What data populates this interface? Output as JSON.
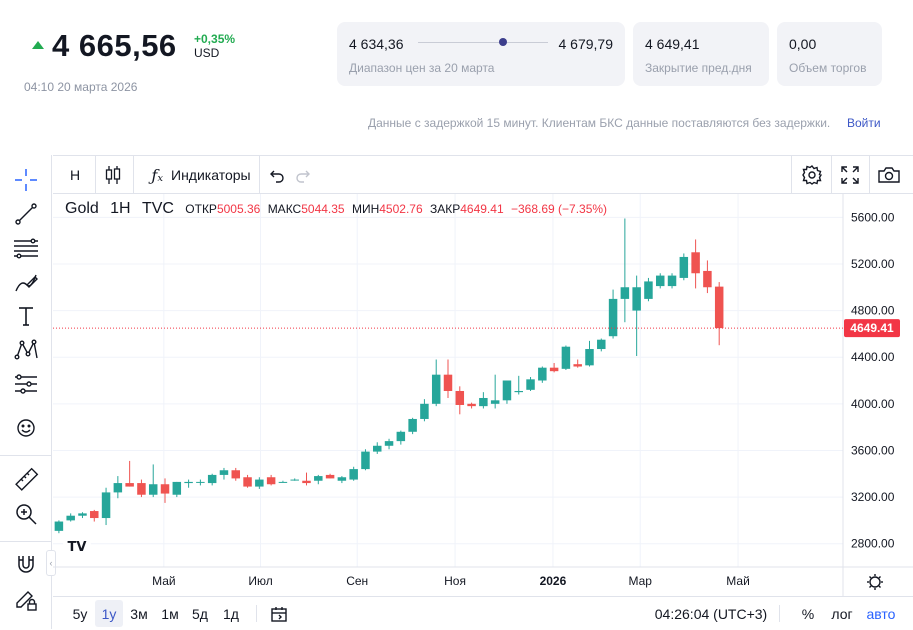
{
  "quote": {
    "price": "4 665,56",
    "change": "+0,35%",
    "currency": "USD",
    "timestamp": "04:10 20 марта 2026"
  },
  "stats": {
    "range_low": "4 634,36",
    "range_high": "4 679,79",
    "range_label": "Диапазон цен за 20 марта",
    "range_position": 0.67,
    "prev_close_value": "4 649,41",
    "prev_close_label": "Закрытие пред.дня",
    "volume_value": "0,00",
    "volume_label": "Объем торгов"
  },
  "delay_note": {
    "text": "Данные с задержкой 15 минут. Клиентам БКС данные поставляются без задержки.",
    "link": "Войти"
  },
  "toolbar": {
    "interval": "Н",
    "indicators_label": "Индикаторы"
  },
  "legend": {
    "symbol": "Gold",
    "interval": "1H",
    "source": "TVC",
    "open_label": "ОТКР",
    "open_value": "5005.36",
    "high_label": "МАКС",
    "high_value": "5044.35",
    "low_label": "МИН",
    "low_value": "4502.76",
    "close_label": "ЗАКР",
    "close_value": "4649.41",
    "change_value": "−368.69 (−7.35%)"
  },
  "bottom_bar": {
    "ranges": [
      "5y",
      "1y",
      "3м",
      "1м",
      "5д",
      "1д"
    ],
    "active_range": "1y",
    "clock": "04:26:04 (UTC+3)",
    "percent_label": "%",
    "log_label": "лог",
    "auto_label": "авто"
  },
  "colors": {
    "up": "#26a69a",
    "down": "#ef5350",
    "accent": "#3c57c6",
    "positive_text": "#22ab51",
    "last_price": "#f23645"
  },
  "chart_data": {
    "type": "candlestick",
    "symbol": "Gold",
    "ylim": [
      2600,
      5800
    ],
    "y_ticks": [
      "5600.00",
      "5200.00",
      "4800.00",
      "4400.00",
      "4000.00",
      "3600.00",
      "3200.00",
      "2800.00"
    ],
    "x_ticks": [
      "Май",
      "Июл",
      "Сен",
      "Ноя",
      "2026",
      "Мар",
      "Май"
    ],
    "x_tick_positions": [
      8.9,
      17.1,
      25.3,
      33.6,
      41.9,
      49.3,
      57.6
    ],
    "last_price_label": "4649.41",
    "last_price": 4649.41,
    "candles": [
      {
        "o": 2910,
        "h": 3000,
        "l": 2890,
        "c": 2990
      },
      {
        "o": 3000,
        "h": 3060,
        "l": 2990,
        "c": 3040
      },
      {
        "o": 3040,
        "h": 3070,
        "l": 3020,
        "c": 3060
      },
      {
        "o": 3080,
        "h": 3090,
        "l": 2990,
        "c": 3020
      },
      {
        "o": 3020,
        "h": 3280,
        "l": 2960,
        "c": 3240
      },
      {
        "o": 3240,
        "h": 3380,
        "l": 3190,
        "c": 3320
      },
      {
        "o": 3320,
        "h": 3510,
        "l": 3290,
        "c": 3290
      },
      {
        "o": 3320,
        "h": 3350,
        "l": 3200,
        "c": 3220
      },
      {
        "o": 3220,
        "h": 3480,
        "l": 3200,
        "c": 3310
      },
      {
        "o": 3310,
        "h": 3360,
        "l": 3150,
        "c": 3230
      },
      {
        "o": 3220,
        "h": 3330,
        "l": 3200,
        "c": 3330
      },
      {
        "o": 3320,
        "h": 3350,
        "l": 3280,
        "c": 3330
      },
      {
        "o": 3330,
        "h": 3350,
        "l": 3300,
        "c": 3330
      },
      {
        "o": 3320,
        "h": 3400,
        "l": 3300,
        "c": 3390
      },
      {
        "o": 3390,
        "h": 3450,
        "l": 3350,
        "c": 3430
      },
      {
        "o": 3430,
        "h": 3450,
        "l": 3340,
        "c": 3360
      },
      {
        "o": 3370,
        "h": 3390,
        "l": 3280,
        "c": 3290
      },
      {
        "o": 3290,
        "h": 3370,
        "l": 3270,
        "c": 3350
      },
      {
        "o": 3370,
        "h": 3390,
        "l": 3300,
        "c": 3310
      },
      {
        "o": 3330,
        "h": 3340,
        "l": 3330,
        "c": 3330
      },
      {
        "o": 3350,
        "h": 3360,
        "l": 3340,
        "c": 3350
      },
      {
        "o": 3340,
        "h": 3410,
        "l": 3300,
        "c": 3320
      },
      {
        "o": 3340,
        "h": 3390,
        "l": 3310,
        "c": 3380
      },
      {
        "o": 3390,
        "h": 3400,
        "l": 3360,
        "c": 3360
      },
      {
        "o": 3340,
        "h": 3380,
        "l": 3320,
        "c": 3370
      },
      {
        "o": 3350,
        "h": 3460,
        "l": 3340,
        "c": 3440
      },
      {
        "o": 3440,
        "h": 3610,
        "l": 3430,
        "c": 3590
      },
      {
        "o": 3590,
        "h": 3670,
        "l": 3570,
        "c": 3640
      },
      {
        "o": 3640,
        "h": 3700,
        "l": 3610,
        "c": 3680
      },
      {
        "o": 3680,
        "h": 3770,
        "l": 3650,
        "c": 3760
      },
      {
        "o": 3760,
        "h": 3880,
        "l": 3740,
        "c": 3870
      },
      {
        "o": 3870,
        "h": 4040,
        "l": 3850,
        "c": 4000
      },
      {
        "o": 4000,
        "h": 4380,
        "l": 3980,
        "c": 4250
      },
      {
        "o": 4250,
        "h": 4380,
        "l": 4050,
        "c": 4110
      },
      {
        "o": 4110,
        "h": 4150,
        "l": 3910,
        "c": 3990
      },
      {
        "o": 4000,
        "h": 4010,
        "l": 3960,
        "c": 3980
      },
      {
        "o": 3980,
        "h": 4100,
        "l": 3960,
        "c": 4050
      },
      {
        "o": 4000,
        "h": 4250,
        "l": 3960,
        "c": 4030
      },
      {
        "o": 4030,
        "h": 4200,
        "l": 4000,
        "c": 4200
      },
      {
        "o": 4100,
        "h": 4240,
        "l": 4080,
        "c": 4110
      },
      {
        "o": 4120,
        "h": 4230,
        "l": 4110,
        "c": 4210
      },
      {
        "o": 4200,
        "h": 4320,
        "l": 4180,
        "c": 4310
      },
      {
        "o": 4310,
        "h": 4350,
        "l": 4270,
        "c": 4280
      },
      {
        "o": 4300,
        "h": 4500,
        "l": 4290,
        "c": 4490
      },
      {
        "o": 4340,
        "h": 4380,
        "l": 4310,
        "c": 4320
      },
      {
        "o": 4330,
        "h": 4540,
        "l": 4320,
        "c": 4470
      },
      {
        "o": 4470,
        "h": 4560,
        "l": 4450,
        "c": 4550
      },
      {
        "o": 4580,
        "h": 4980,
        "l": 4560,
        "c": 4900
      },
      {
        "o": 4900,
        "h": 5590,
        "l": 4700,
        "c": 5000
      },
      {
        "o": 4800,
        "h": 5100,
        "l": 4410,
        "c": 5000
      },
      {
        "o": 4900,
        "h": 5080,
        "l": 4880,
        "c": 5050
      },
      {
        "o": 5010,
        "h": 5120,
        "l": 4990,
        "c": 5100
      },
      {
        "o": 5010,
        "h": 5120,
        "l": 4990,
        "c": 5100
      },
      {
        "o": 5080,
        "h": 5290,
        "l": 5060,
        "c": 5260
      },
      {
        "o": 5300,
        "h": 5410,
        "l": 4990,
        "c": 5120
      },
      {
        "o": 5140,
        "h": 5230,
        "l": 4950,
        "c": 5000
      },
      {
        "o": 5005.36,
        "h": 5044.35,
        "l": 4502.76,
        "c": 4649.41
      }
    ],
    "candle_slots": [
      0,
      1,
      2,
      3,
      4,
      5,
      6,
      7,
      8,
      9,
      10,
      11,
      12,
      13,
      14,
      15,
      16,
      17,
      18,
      19,
      20,
      21,
      22,
      23,
      24,
      25,
      26,
      27,
      28,
      29,
      30,
      31,
      32,
      33,
      34,
      35,
      36,
      37,
      38,
      39,
      40,
      41,
      42,
      43,
      44,
      45,
      46,
      47,
      48,
      49,
      50,
      51,
      52,
      53,
      54,
      55,
      56
    ],
    "slot_count": 67
  }
}
